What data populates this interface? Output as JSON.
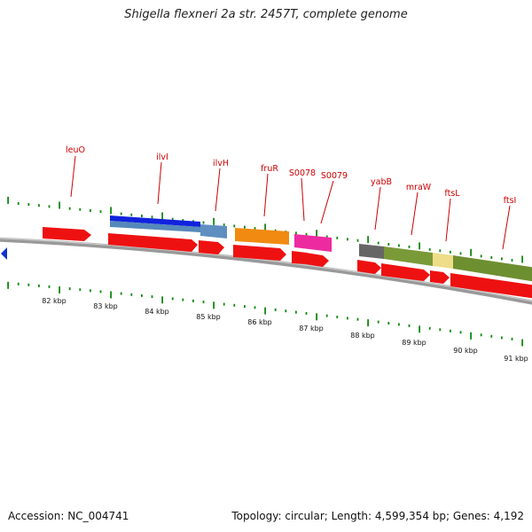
{
  "title": "Shigella flexneri 2a str. 2457T, complete genome",
  "footer": {
    "accession": "Accession: NC_004741",
    "summary": "Topology: circular; Length: 4,599,354 bp; Genes: 4,192"
  },
  "colors": {
    "gene_label": "#cc0000",
    "cds_arrow": "#ee1111",
    "backbone": "#888888",
    "tick": "#118811",
    "nav_arrow": "#1133cc"
  },
  "icons": {
    "nav": "left-triangle-icon"
  },
  "scale_labels": [
    "82 kbp",
    "83 kbp",
    "84 kbp",
    "85 kbp",
    "86 kbp",
    "87 kbp",
    "88 kbp",
    "89 kbp",
    "90 kbp",
    "91 kbp"
  ],
  "gene_labels": [
    "leuO",
    "ilvI",
    "ilvH",
    "fruR",
    "S0078",
    "S0079",
    "yabB",
    "mraW",
    "ftsL",
    "ftsI"
  ]
}
